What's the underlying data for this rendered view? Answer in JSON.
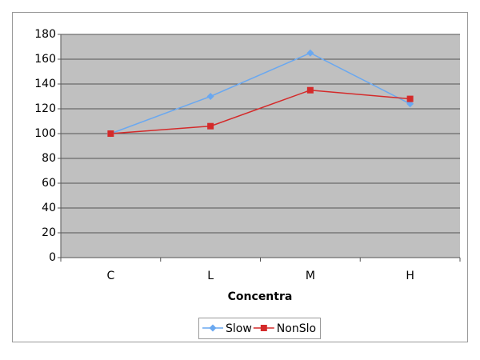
{
  "chart_data": {
    "type": "line",
    "x_label": "Concentra",
    "categories": [
      "C",
      "L",
      "M",
      "H"
    ],
    "series": [
      {
        "name": "Slow",
        "color": "#6aa8f0",
        "marker": "diamond",
        "values": [
          100,
          130,
          165,
          124
        ]
      },
      {
        "name": "NonSlo",
        "color": "#d42a2a",
        "marker": "square",
        "values": [
          100,
          106,
          135,
          128
        ]
      }
    ],
    "ylim": [
      0,
      180
    ],
    "yticks": [
      0,
      20,
      40,
      60,
      80,
      100,
      120,
      140,
      160,
      180
    ],
    "grid": true,
    "legend": "bottom"
  }
}
